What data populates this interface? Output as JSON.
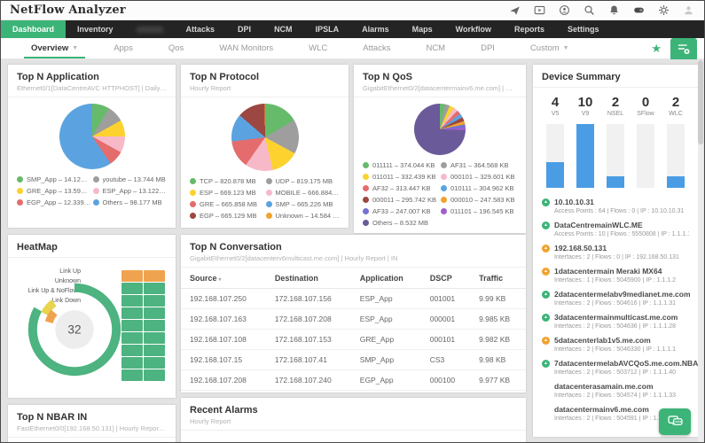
{
  "theme": {
    "accent": "#3cb478",
    "bar_blue": "#4a9de4",
    "status_up": "#3cb478",
    "status_warning": "#f0a32f",
    "status_critical": "#d9534f"
  },
  "app": {
    "title": "NetFlow Analyzer"
  },
  "header_icons": [
    "rocket-icon",
    "video-icon",
    "headset-icon",
    "search-icon",
    "bell-icon",
    "feedback-icon",
    "gear-icon",
    "user-icon"
  ],
  "main_nav": {
    "items": [
      {
        "label": "Dashboard",
        "active": true
      },
      {
        "label": "Inventory"
      },
      {
        "label": "",
        "blurred": true
      },
      {
        "label": "Attacks"
      },
      {
        "label": "DPI"
      },
      {
        "label": "NCM"
      },
      {
        "label": "IPSLA"
      },
      {
        "label": "Alarms"
      },
      {
        "label": "Maps"
      },
      {
        "label": "Workflow"
      },
      {
        "label": "Reports"
      },
      {
        "label": "Settings"
      }
    ]
  },
  "sub_nav": {
    "items": [
      {
        "label": "Overview",
        "active": true,
        "caret": true
      },
      {
        "label": "Apps"
      },
      {
        "label": "Qos"
      },
      {
        "label": "WAN Monitors"
      },
      {
        "label": "WLC"
      },
      {
        "label": "Attacks"
      },
      {
        "label": "NCM"
      },
      {
        "label": "DPI"
      },
      {
        "label": "Custom",
        "caret": true
      }
    ]
  },
  "widgets": {
    "top_n_application": {
      "title": "Top N Application",
      "subtitle": "Ethernet0/1[DataCentreAVC HTTPHOST] | Daily Report | IN",
      "slices": [
        {
          "label": "SMP_App – 14.121 MB",
          "value": 14.121,
          "color": "#66bb6a"
        },
        {
          "label": "youtube – 13.744 MB",
          "value": 13.744,
          "color": "#9e9e9e"
        },
        {
          "label": "GRE_App – 13.591 MB",
          "value": 13.591,
          "color": "#fdd22f"
        },
        {
          "label": "ESP_App – 13.122 MB",
          "value": 13.122,
          "color": "#f7b9c8"
        },
        {
          "label": "EGP_App – 12.339 MB",
          "value": 12.339,
          "color": "#e56c6c"
        },
        {
          "label": "Others – 98.177 MB",
          "value": 98.177,
          "color": "#5ba3e0"
        }
      ]
    },
    "top_n_protocol": {
      "title": "Top N Protocol",
      "subtitle": "Hourly Report",
      "slices": [
        {
          "label": "TCP – 820.878 MB",
          "value": 820.878,
          "color": "#66bb6a"
        },
        {
          "label": "UDP – 819.175 MB",
          "value": 819.175,
          "color": "#9e9e9e"
        },
        {
          "label": "ESP – 669.123 MB",
          "value": 669.123,
          "color": "#fdd22f"
        },
        {
          "label": "MOBILE – 666.884 MB",
          "value": 666.884,
          "color": "#f7b9c8"
        },
        {
          "label": "GRE – 665.858 MB",
          "value": 665.858,
          "color": "#e56c6c"
        },
        {
          "label": "SMP – 665.226 MB",
          "value": 665.226,
          "color": "#5ba3e0"
        },
        {
          "label": "EGP – 665.129 MB",
          "value": 665.129,
          "color": "#9c4742"
        },
        {
          "label": "Unknown – 14.584 MB",
          "value": 14.584,
          "color": "#f0a32f"
        }
      ]
    },
    "top_n_qos": {
      "title": "Top N QoS",
      "subtitle": "GigabitEthernet0/2[datacentermainv6.me.com] | Hourly Report ...",
      "slices": [
        {
          "label": "011111 – 374.044 KB",
          "value": 374.044,
          "color": "#66bb6a"
        },
        {
          "label": "AF31 – 364.568 KB",
          "value": 364.568,
          "color": "#9e9e9e"
        },
        {
          "label": "011011 – 332.439 KB",
          "value": 332.439,
          "color": "#fdd22f"
        },
        {
          "label": "000101 – 329.601 KB",
          "value": 329.601,
          "color": "#f7b9c8"
        },
        {
          "label": "AF32 – 313.447 KB",
          "value": 313.447,
          "color": "#e56c6c"
        },
        {
          "label": "010111 – 304.962 KB",
          "value": 304.962,
          "color": "#5ba3e0"
        },
        {
          "label": "000011 – 295.742 KB",
          "value": 295.742,
          "color": "#9c4742"
        },
        {
          "label": "000010 – 247.583 KB",
          "value": 247.583,
          "color": "#f0a32f"
        },
        {
          "label": "AF33 – 247.007 KB",
          "value": 247.007,
          "color": "#7472cf"
        },
        {
          "label": "011101 – 196.545 KB",
          "value": 196.545,
          "color": "#9f5fc9"
        },
        {
          "label": "Others – 8.532 MB",
          "value": 8736.8,
          "color": "#6a5a99"
        }
      ]
    },
    "heatmap": {
      "title": "HeatMap",
      "center_value": "32",
      "legend_labels": [
        "Link Up",
        "Unknown",
        "Link Up & NoFlows",
        "Link Down"
      ],
      "colors": {
        "link_up": "#4db380",
        "unknown": "#e8d44d",
        "noflows": "#f0a34f",
        "center_bg": "#ededed"
      },
      "grid_cells": [
        "orange",
        "orange",
        "green",
        "green",
        "green",
        "green",
        "green",
        "green",
        "green",
        "green",
        "green",
        "green",
        "green",
        "green",
        "green",
        "green",
        "green",
        "green"
      ]
    },
    "top_n_conversation": {
      "title": "Top N Conversation",
      "subtitle": "GigabitEthernet0/2[datacenterv6multicast.me.com] | Hourly Report | IN",
      "columns": [
        "Source",
        "Destination",
        "Application",
        "DSCP",
        "Traffic"
      ],
      "rows": [
        [
          "192.168.107.250",
          "172.168.107.156",
          "ESP_App",
          "001001",
          "9.99 KB"
        ],
        [
          "192.168.107.163",
          "172.168.107.208",
          "ESP_App",
          "000001",
          "9.985 KB"
        ],
        [
          "192.168.107.108",
          "172.168.107.153",
          "GRE_App",
          "000101",
          "9.982 KB"
        ],
        [
          "192.168.107.15",
          "172.168.107.41",
          "SMP_App",
          "CS3",
          "9.98 KB"
        ],
        [
          "192.168.107.208",
          "172.168.107.240",
          "EGP_App",
          "000100",
          "9.977 KB"
        ]
      ]
    },
    "recent_alarms": {
      "title": "Recent Alarms",
      "subtitle": "Hourly Report"
    },
    "top_n_nbar": {
      "title": "Top N NBAR IN",
      "subtitle": "FastEthernet0/0[192.168.50.131] | Hourly Report | IN"
    },
    "device_summary": {
      "title": "Device Summary",
      "stats": [
        {
          "count": "4",
          "label": "V5",
          "pct": 40
        },
        {
          "count": "10",
          "label": "V9",
          "pct": 100
        },
        {
          "count": "2",
          "label": "NSEL",
          "pct": 18
        },
        {
          "count": "0",
          "label": "SFlow",
          "pct": 0
        },
        {
          "count": "2",
          "label": "WLC",
          "pct": 18
        }
      ],
      "devices": [
        {
          "name": "10.10.10.31",
          "status": "up",
          "details": "Access Points : 64  |  Flows : 0  |  IP : 10.10.10.31"
        },
        {
          "name": "DataCentremainWLC.ME",
          "status": "up",
          "details": "Access Points : 10  |  Flows : 5550808  |  IP : 1.1.1.12"
        },
        {
          "name": "192.168.50.131",
          "status": "warning",
          "details": "Interfaces : 2  |  Flows : 0  |  IP : 192.168.50.131"
        },
        {
          "name": "1datacentermain Meraki MX64",
          "status": "warning",
          "details": "Interfaces : 1  |  Flows : 5045900  |  IP : 1.1.1.2"
        },
        {
          "name": "2datacentermelabv9medianet.me.com",
          "status": "up",
          "details": "Interfaces : 2  |  Flows : 504616  |  IP : 1.1.1.31"
        },
        {
          "name": "3datacentermainmulticast.me.com",
          "status": "up",
          "details": "Interfaces : 2  |  Flows : 504636  |  IP : 1.1.1.28"
        },
        {
          "name": "5datacenterlab1v5.me.com",
          "status": "warning",
          "details": "Interfaces : 2  |  Flows : 5046330  |  IP : 1.1.1.1"
        },
        {
          "name": "7datacentermelabAVCQoS.me.com.NBAR",
          "status": "up",
          "details": "Interfaces : 2  |  Flows : 503712  |  IP : 1.1.1.40"
        },
        {
          "name": "datacenterasamain.me.com",
          "status": "critical",
          "details": "Interfaces : 2  |  Flows : 504574  |  IP : 1.1.1.33"
        },
        {
          "name": "datacentermainv6.me.com",
          "status": "critical",
          "details": "Interfaces : 2  |  Flows : 504591  |  IP : 1.1.1.34"
        }
      ]
    }
  }
}
